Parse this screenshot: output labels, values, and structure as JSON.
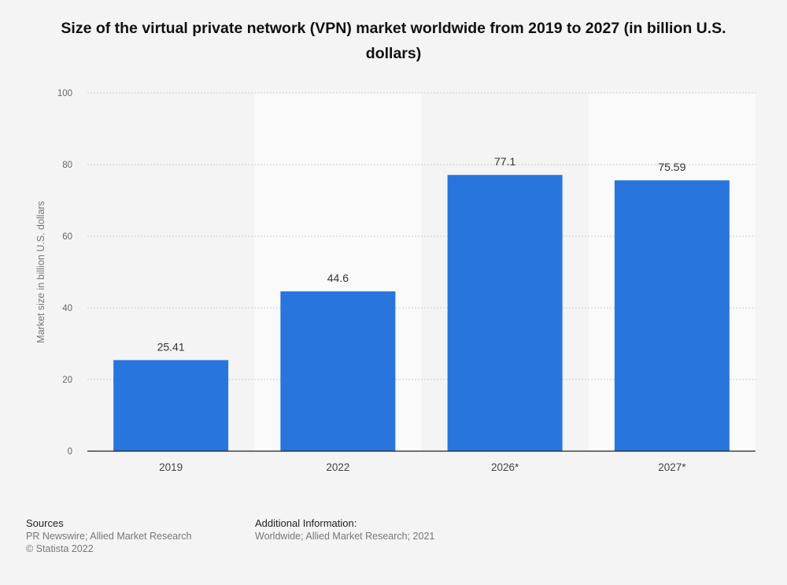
{
  "chart_data": {
    "type": "bar",
    "title": "Size of the virtual private network (VPN) market worldwide from 2019 to 2027 (in billion U.S. dollars)",
    "categories": [
      "2019",
      "2022",
      "2026*",
      "2027*"
    ],
    "values": [
      25.41,
      44.6,
      77.1,
      75.59
    ],
    "data_labels": [
      "25.41",
      "44.6",
      "77.1",
      "75.59"
    ],
    "ylabel": "Market size in billion U.S. dollars",
    "xlabel": "",
    "ylim": [
      0,
      100
    ],
    "yticks": [
      0,
      20,
      40,
      60,
      80,
      100
    ],
    "grid": true,
    "colors": {
      "bar": "#2876dd",
      "band": "#fafafa",
      "grid": "#cccccc",
      "axis": "#222222",
      "tick_text": "#666666",
      "value_text": "#333333"
    }
  },
  "footer": {
    "sources": {
      "heading": "Sources",
      "lines": [
        "PR Newswire; Allied Market Research",
        "© Statista 2022"
      ]
    },
    "additional": {
      "heading": "Additional Information:",
      "lines": [
        "Worldwide; Allied Market Research; 2021"
      ]
    }
  }
}
